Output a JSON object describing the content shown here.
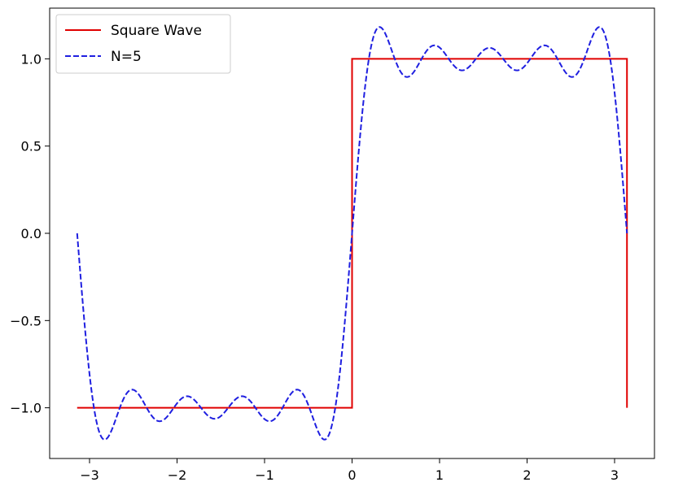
{
  "chart_data": {
    "type": "line",
    "title": "",
    "xlabel": "",
    "ylabel": "",
    "xlim": [
      -3.4557519189487724,
      3.4557519189487724
    ],
    "ylim": [
      -1.2906,
      1.2906
    ],
    "grid": false,
    "legend_position": "upper left",
    "x_ticks": [
      -3,
      -2,
      -1,
      0,
      1,
      2,
      3
    ],
    "x_tick_labels": [
      "−3",
      "−2",
      "−1",
      "0",
      "1",
      "2",
      "3"
    ],
    "y_ticks": [
      -1.0,
      -0.5,
      0.0,
      0.5,
      1.0
    ],
    "y_tick_labels": [
      "−1.0",
      "−0.5",
      "0.0",
      "0.5",
      "1.0"
    ],
    "x_range": [
      -3.141592653589793,
      3.141592653589793
    ],
    "series": [
      {
        "name": "Square Wave",
        "color": "#e00000",
        "style": "solid",
        "function": "sign(sin(x))",
        "values": [
          -1,
          -1,
          1,
          1,
          -1
        ],
        "x": [
          -3.141592653589793,
          0.0,
          0.0,
          3.141592653589793,
          3.141592653589793
        ]
      },
      {
        "name": "N=5",
        "color": "#1f1fe0",
        "style": "dashed",
        "function": "(4/pi) * sum_{k=1..5} sin((2k-1)x)/(2k-1)",
        "harmonics": 5
      }
    ]
  }
}
